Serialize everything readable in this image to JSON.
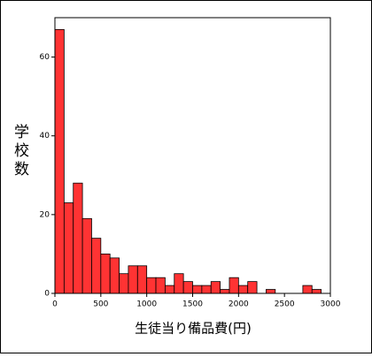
{
  "chart_data": {
    "type": "histogram",
    "x_label": "生徒当り備品費(円)",
    "y_label": "学校数",
    "bins": [
      0,
      100,
      200,
      300,
      400,
      500,
      600,
      700,
      800,
      900,
      1000,
      1100,
      1200,
      1300,
      1400,
      1500,
      1600,
      1700,
      1800,
      1900,
      2000,
      2100,
      2200,
      2300,
      2400,
      2500,
      2600,
      2700,
      2800,
      2900
    ],
    "counts": [
      67,
      23,
      28,
      19,
      14,
      10,
      9,
      5,
      7,
      7,
      4,
      4,
      2,
      5,
      3,
      2,
      2,
      3,
      1,
      4,
      2,
      3,
      0,
      1,
      0,
      0,
      0,
      2,
      1
    ],
    "color": "#ff3333",
    "xlim": [
      0,
      3000
    ],
    "xticks": [
      0,
      500,
      1000,
      1500,
      2000,
      2500,
      3000
    ],
    "ylim": [
      0,
      70
    ],
    "yticks": [
      0,
      20,
      40,
      60
    ]
  }
}
